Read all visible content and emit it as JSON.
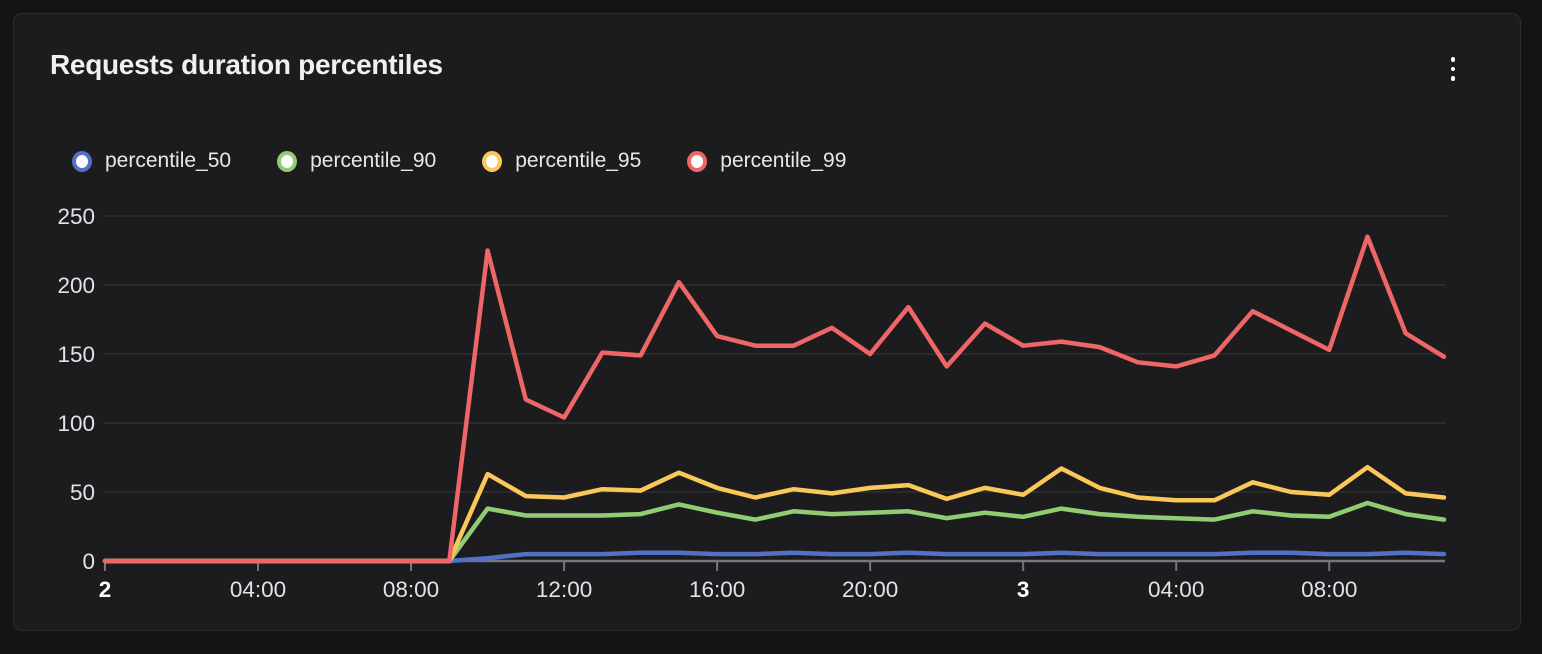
{
  "panel": {
    "title": "Requests duration percentiles",
    "menu_icon": "kebab-vertical-icon"
  },
  "colors": {
    "background": "#141416",
    "panel_background": "#1c1c1e",
    "panel_border": "#2b2b2e",
    "grid_line": "rgba(255,255,255,0.09)",
    "axis_line": "#75767e",
    "tick_label": "#e2e3e7",
    "day_tick_label": "#ffffff",
    "title": "#f0f0f2",
    "legend_marker_fill": "#fcfcfc",
    "series_blue": "#5470c6",
    "series_green": "#91cc75",
    "series_yellow": "#fac858",
    "series_red": "#ee6666"
  },
  "chart_data": {
    "type": "line",
    "title": "Requests duration percentiles",
    "xlabel": "",
    "ylabel": "",
    "ylim": [
      0,
      250
    ],
    "y_ticks": [
      0,
      50,
      100,
      150,
      200,
      250
    ],
    "grid": true,
    "legend_position": "top",
    "x": [
      "2 00:00",
      "2 01:00",
      "2 02:00",
      "2 03:00",
      "2 04:00",
      "2 05:00",
      "2 06:00",
      "2 07:00",
      "2 08:00",
      "2 09:00",
      "2 10:00",
      "2 11:00",
      "2 12:00",
      "2 13:00",
      "2 14:00",
      "2 15:00",
      "2 16:00",
      "2 17:00",
      "2 18:00",
      "2 19:00",
      "2 20:00",
      "2 21:00",
      "2 22:00",
      "2 23:00",
      "3 00:00",
      "3 01:00",
      "3 02:00",
      "3 03:00",
      "3 04:00",
      "3 05:00",
      "3 06:00",
      "3 07:00",
      "3 08:00",
      "3 09:00",
      "3 10:00",
      "3 11:00"
    ],
    "x_axis_ticks": [
      {
        "index": 0,
        "label": "2",
        "bold": true
      },
      {
        "index": 4,
        "label": "04:00",
        "bold": false
      },
      {
        "index": 8,
        "label": "08:00",
        "bold": false
      },
      {
        "index": 12,
        "label": "12:00",
        "bold": false
      },
      {
        "index": 16,
        "label": "16:00",
        "bold": false
      },
      {
        "index": 20,
        "label": "20:00",
        "bold": false
      },
      {
        "index": 24,
        "label": "3",
        "bold": true
      },
      {
        "index": 28,
        "label": "04:00",
        "bold": false
      },
      {
        "index": 32,
        "label": "08:00",
        "bold": false
      }
    ],
    "series": [
      {
        "name": "percentile_50",
        "color": "#5470c6",
        "values": [
          0,
          0,
          0,
          0,
          0,
          0,
          0,
          0,
          0,
          0,
          2,
          5,
          5,
          5,
          6,
          6,
          5,
          5,
          6,
          5,
          5,
          6,
          5,
          5,
          5,
          6,
          5,
          5,
          5,
          5,
          6,
          6,
          5,
          5,
          6,
          5
        ]
      },
      {
        "name": "percentile_90",
        "color": "#91cc75",
        "values": [
          0,
          0,
          0,
          0,
          0,
          0,
          0,
          0,
          0,
          0,
          38,
          33,
          33,
          33,
          34,
          41,
          35,
          30,
          36,
          34,
          35,
          36,
          31,
          35,
          32,
          38,
          34,
          32,
          31,
          30,
          36,
          33,
          32,
          42,
          34,
          30
        ]
      },
      {
        "name": "percentile_95",
        "color": "#fac858",
        "values": [
          0,
          0,
          0,
          0,
          0,
          0,
          0,
          0,
          0,
          0,
          63,
          47,
          46,
          52,
          51,
          64,
          53,
          46,
          52,
          49,
          53,
          55,
          45,
          53,
          48,
          67,
          53,
          46,
          44,
          44,
          57,
          50,
          48,
          68,
          49,
          46
        ]
      },
      {
        "name": "percentile_99",
        "color": "#ee6666",
        "values": [
          0,
          0,
          0,
          0,
          0,
          0,
          0,
          0,
          0,
          0,
          225,
          117,
          104,
          151,
          149,
          202,
          163,
          156,
          156,
          169,
          150,
          184,
          141,
          172,
          156,
          159,
          155,
          144,
          141,
          149,
          181,
          167,
          153,
          235,
          165,
          148
        ]
      }
    ]
  }
}
